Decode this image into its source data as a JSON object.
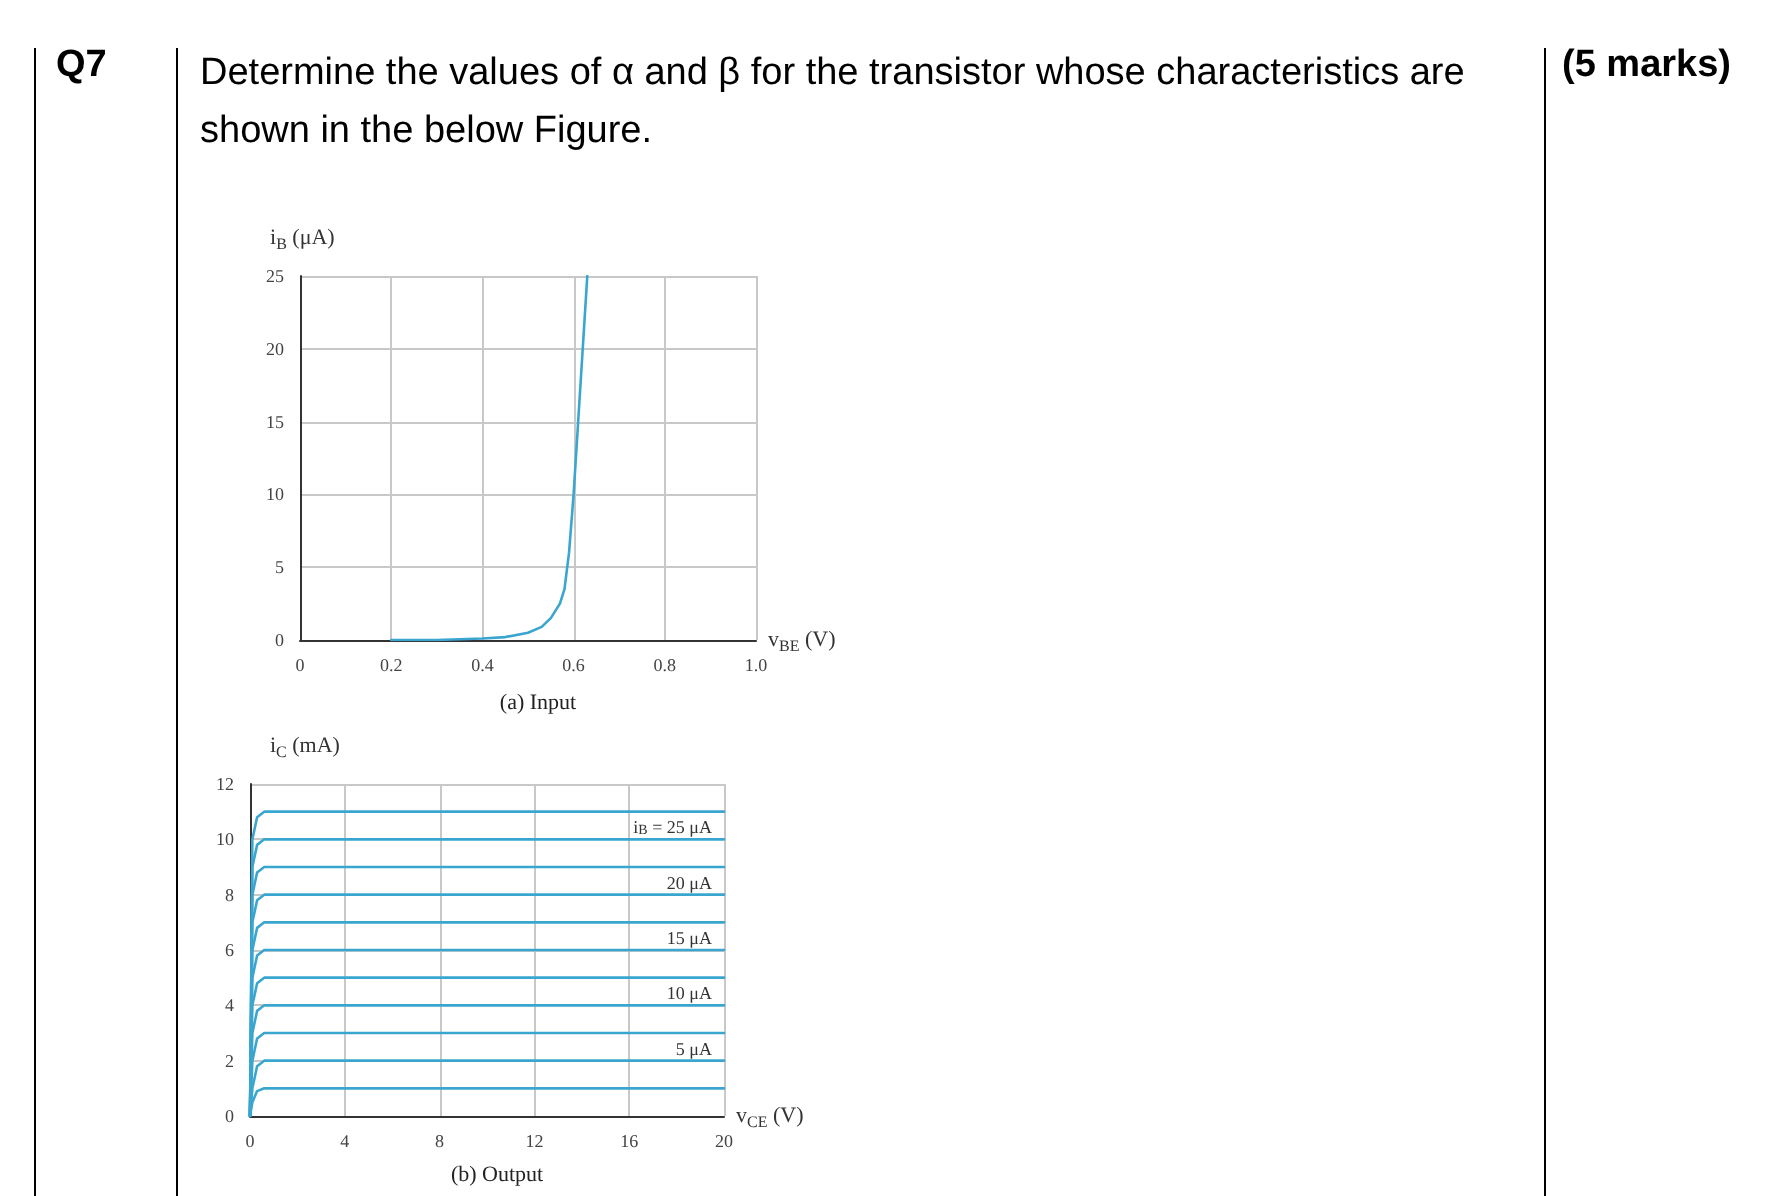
{
  "chart_data": [
    {
      "type": "line",
      "title": "Determine the values of α and β for the transistor whose characteristics are shown in the below Figure.",
      "xlabel": "v$_{BE}$ (V)",
      "ylabel": "i$_{B}$ (μA)",
      "annotations": [
        "Q7",
        "(5 marks)",
        "(a) Input"
      ],
      "x": [
        0.2,
        0.3,
        0.4,
        0.45,
        0.5,
        0.53,
        0.55,
        0.57,
        0.58,
        0.59,
        0.6,
        0.61,
        0.62,
        0.63
      ],
      "series": [
        {
          "color": "#3aa6d0",
          "values": [
            0,
            0,
            0.1,
            0.2,
            0.5,
            0.9,
            1.5,
            2.5,
            3.5,
            6,
            10,
            15,
            20,
            25
          ]
        }
      ],
      "xlim": [
        0,
        1
      ],
      "ylim": [
        0,
        25
      ],
      "xticks": [
        0,
        0.2,
        0.4,
        0.6,
        0.8,
        {
          "value": 1,
          "label": "1.0"
        }
      ],
      "yticks": [
        0,
        5,
        10,
        15,
        20,
        25
      ],
      "grid": true,
      "legend": false,
      "marker": "none",
      "line_style": "solid"
    },
    {
      "type": "line",
      "xlabel": "v$_{CE}$ (V)",
      "ylabel": "i$_{C}$ (mA)",
      "annotations": [
        "(b) Output"
      ],
      "x": [
        0,
        0.1,
        0.3,
        0.6,
        20
      ],
      "series": [
        {
          "color": "#3aa6d0",
          "values": [
            0,
            10,
            10.8,
            11,
            11
          ]
        },
        {
          "name": "i$_{B}$ = 25 μA",
          "color": "#3aa6d0",
          "values": [
            0,
            9,
            9.8,
            10,
            10
          ]
        },
        {
          "color": "#3aa6d0",
          "values": [
            0,
            8,
            8.8,
            9,
            9
          ]
        },
        {
          "name": "20 μA",
          "color": "#3aa6d0",
          "values": [
            0,
            7,
            7.8,
            8,
            8
          ]
        },
        {
          "color": "#3aa6d0",
          "values": [
            0,
            6,
            6.8,
            7,
            7
          ]
        },
        {
          "name": "15 μA",
          "color": "#3aa6d0",
          "values": [
            0,
            5,
            5.8,
            6,
            6
          ]
        },
        {
          "color": "#3aa6d0",
          "values": [
            0,
            4,
            4.8,
            5,
            5
          ]
        },
        {
          "name": "10 μA",
          "color": "#3aa6d0",
          "values": [
            0,
            3,
            3.8,
            4,
            4
          ]
        },
        {
          "color": "#3aa6d0",
          "values": [
            0,
            2,
            2.8,
            3,
            3
          ]
        },
        {
          "name": "5 μA",
          "color": "#3aa6d0",
          "values": [
            0,
            1,
            1.8,
            2,
            2
          ]
        },
        {
          "color": "#3aa6d0",
          "values": [
            0,
            0.5,
            0.9,
            1,
            1
          ]
        }
      ],
      "xlim": [
        0,
        20
      ],
      "ylim": [
        0,
        12
      ],
      "xticks": [
        0,
        4,
        8,
        12,
        16,
        20
      ],
      "yticks": [
        0,
        2,
        4,
        6,
        8,
        10,
        12
      ],
      "grid": true,
      "legend": false,
      "marker": "none",
      "line_style": "solid"
    }
  ]
}
